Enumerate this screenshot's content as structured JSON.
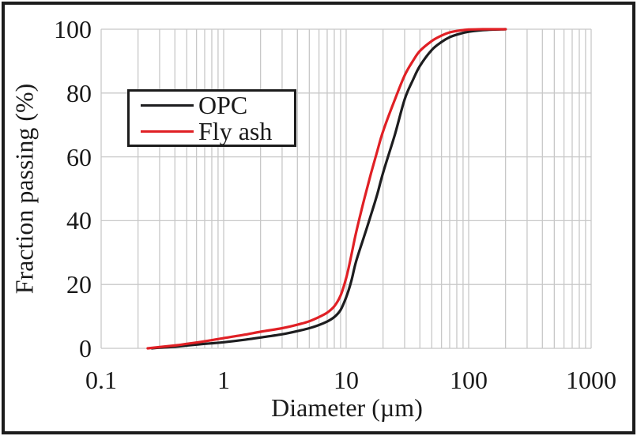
{
  "chart_data": {
    "type": "line",
    "title": "",
    "xlabel": "Diameter (µm)",
    "ylabel": "Fraction passing (%)",
    "x_scale": "log",
    "xlim": [
      0.1,
      1000
    ],
    "ylim": [
      0,
      100
    ],
    "x_ticks": [
      0.1,
      1,
      10,
      100,
      1000
    ],
    "x_tick_labels": [
      "0.1",
      "1",
      "10",
      "100",
      "1000"
    ],
    "y_ticks": [
      0,
      20,
      40,
      60,
      80,
      100
    ],
    "y_tick_labels": [
      "0",
      "20",
      "40",
      "60",
      "80",
      "100"
    ],
    "grid": "vertical major+minor (log decades), horizontal major only",
    "gridline_color": "#c8c8c8",
    "legend_position": "upper-left-inside",
    "series": [
      {
        "name": "OPC",
        "color": "#1d1d1f",
        "x": [
          0.26,
          0.3,
          0.4,
          0.5,
          0.7,
          1,
          1.5,
          2,
          3,
          4,
          5,
          6,
          7,
          8,
          9,
          10,
          11,
          12,
          14,
          16,
          18,
          20,
          25,
          30,
          35,
          40,
          50,
          60,
          70,
          85,
          100,
          130,
          160,
          200
        ],
        "y": [
          0,
          0.2,
          0.5,
          0.9,
          1.4,
          1.9,
          2.7,
          3.4,
          4.4,
          5.4,
          6.3,
          7.3,
          8.4,
          9.8,
          12,
          16,
          21,
          27,
          35,
          42,
          48.5,
          55,
          67,
          78,
          84,
          88.5,
          93.5,
          96,
          97.5,
          98.6,
          99.2,
          99.7,
          99.9,
          100
        ]
      },
      {
        "name": "Fly ash",
        "color": "#e02025",
        "x": [
          0.24,
          0.3,
          0.4,
          0.5,
          0.7,
          1,
          1.5,
          2,
          3,
          4,
          5,
          6,
          7,
          8,
          9,
          10,
          11,
          12,
          14,
          16,
          18,
          20,
          25,
          30,
          35,
          40,
          50,
          60,
          70,
          85,
          100,
          130,
          160,
          200
        ],
        "y": [
          0,
          0.4,
          0.9,
          1.4,
          2.2,
          3.2,
          4.3,
          5.2,
          6.3,
          7.4,
          8.5,
          9.8,
          11.2,
          13.2,
          16.5,
          22,
          29,
          36,
          46.5,
          55,
          62,
          68,
          78,
          85.5,
          90,
          93.2,
          96.3,
          98,
          99,
          99.6,
          99.9,
          100,
          100,
          100
        ]
      }
    ],
    "d50_estimate_um": {
      "OPC": 18.5,
      "Fly ash": 14.5
    },
    "frame_color": "#1c1c1c"
  }
}
